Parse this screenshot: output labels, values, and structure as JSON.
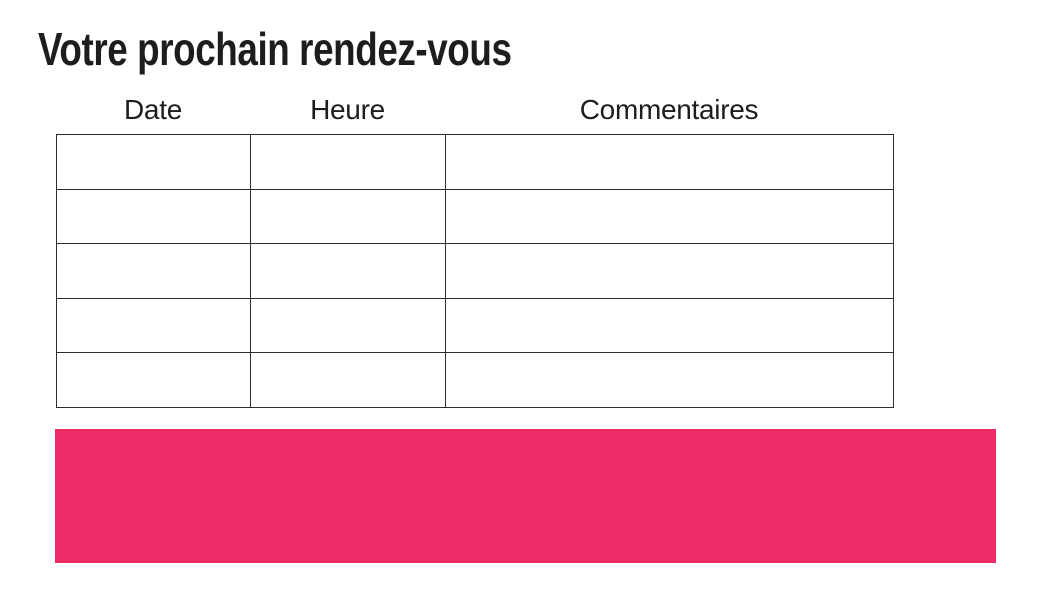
{
  "title": "Votre prochain rendez-vous",
  "table": {
    "headers": [
      "Date",
      "Heure",
      "Commentaires"
    ],
    "rows": [
      [
        "",
        "",
        ""
      ],
      [
        "",
        "",
        ""
      ],
      [
        "",
        "",
        ""
      ],
      [
        "",
        "",
        ""
      ],
      [
        "",
        "",
        ""
      ]
    ]
  },
  "banner": {
    "color": "#EE2C67"
  },
  "colors": {
    "text": "#1D1D1B",
    "table_border": "#2D2D2D",
    "background": "#FFFFFF"
  }
}
